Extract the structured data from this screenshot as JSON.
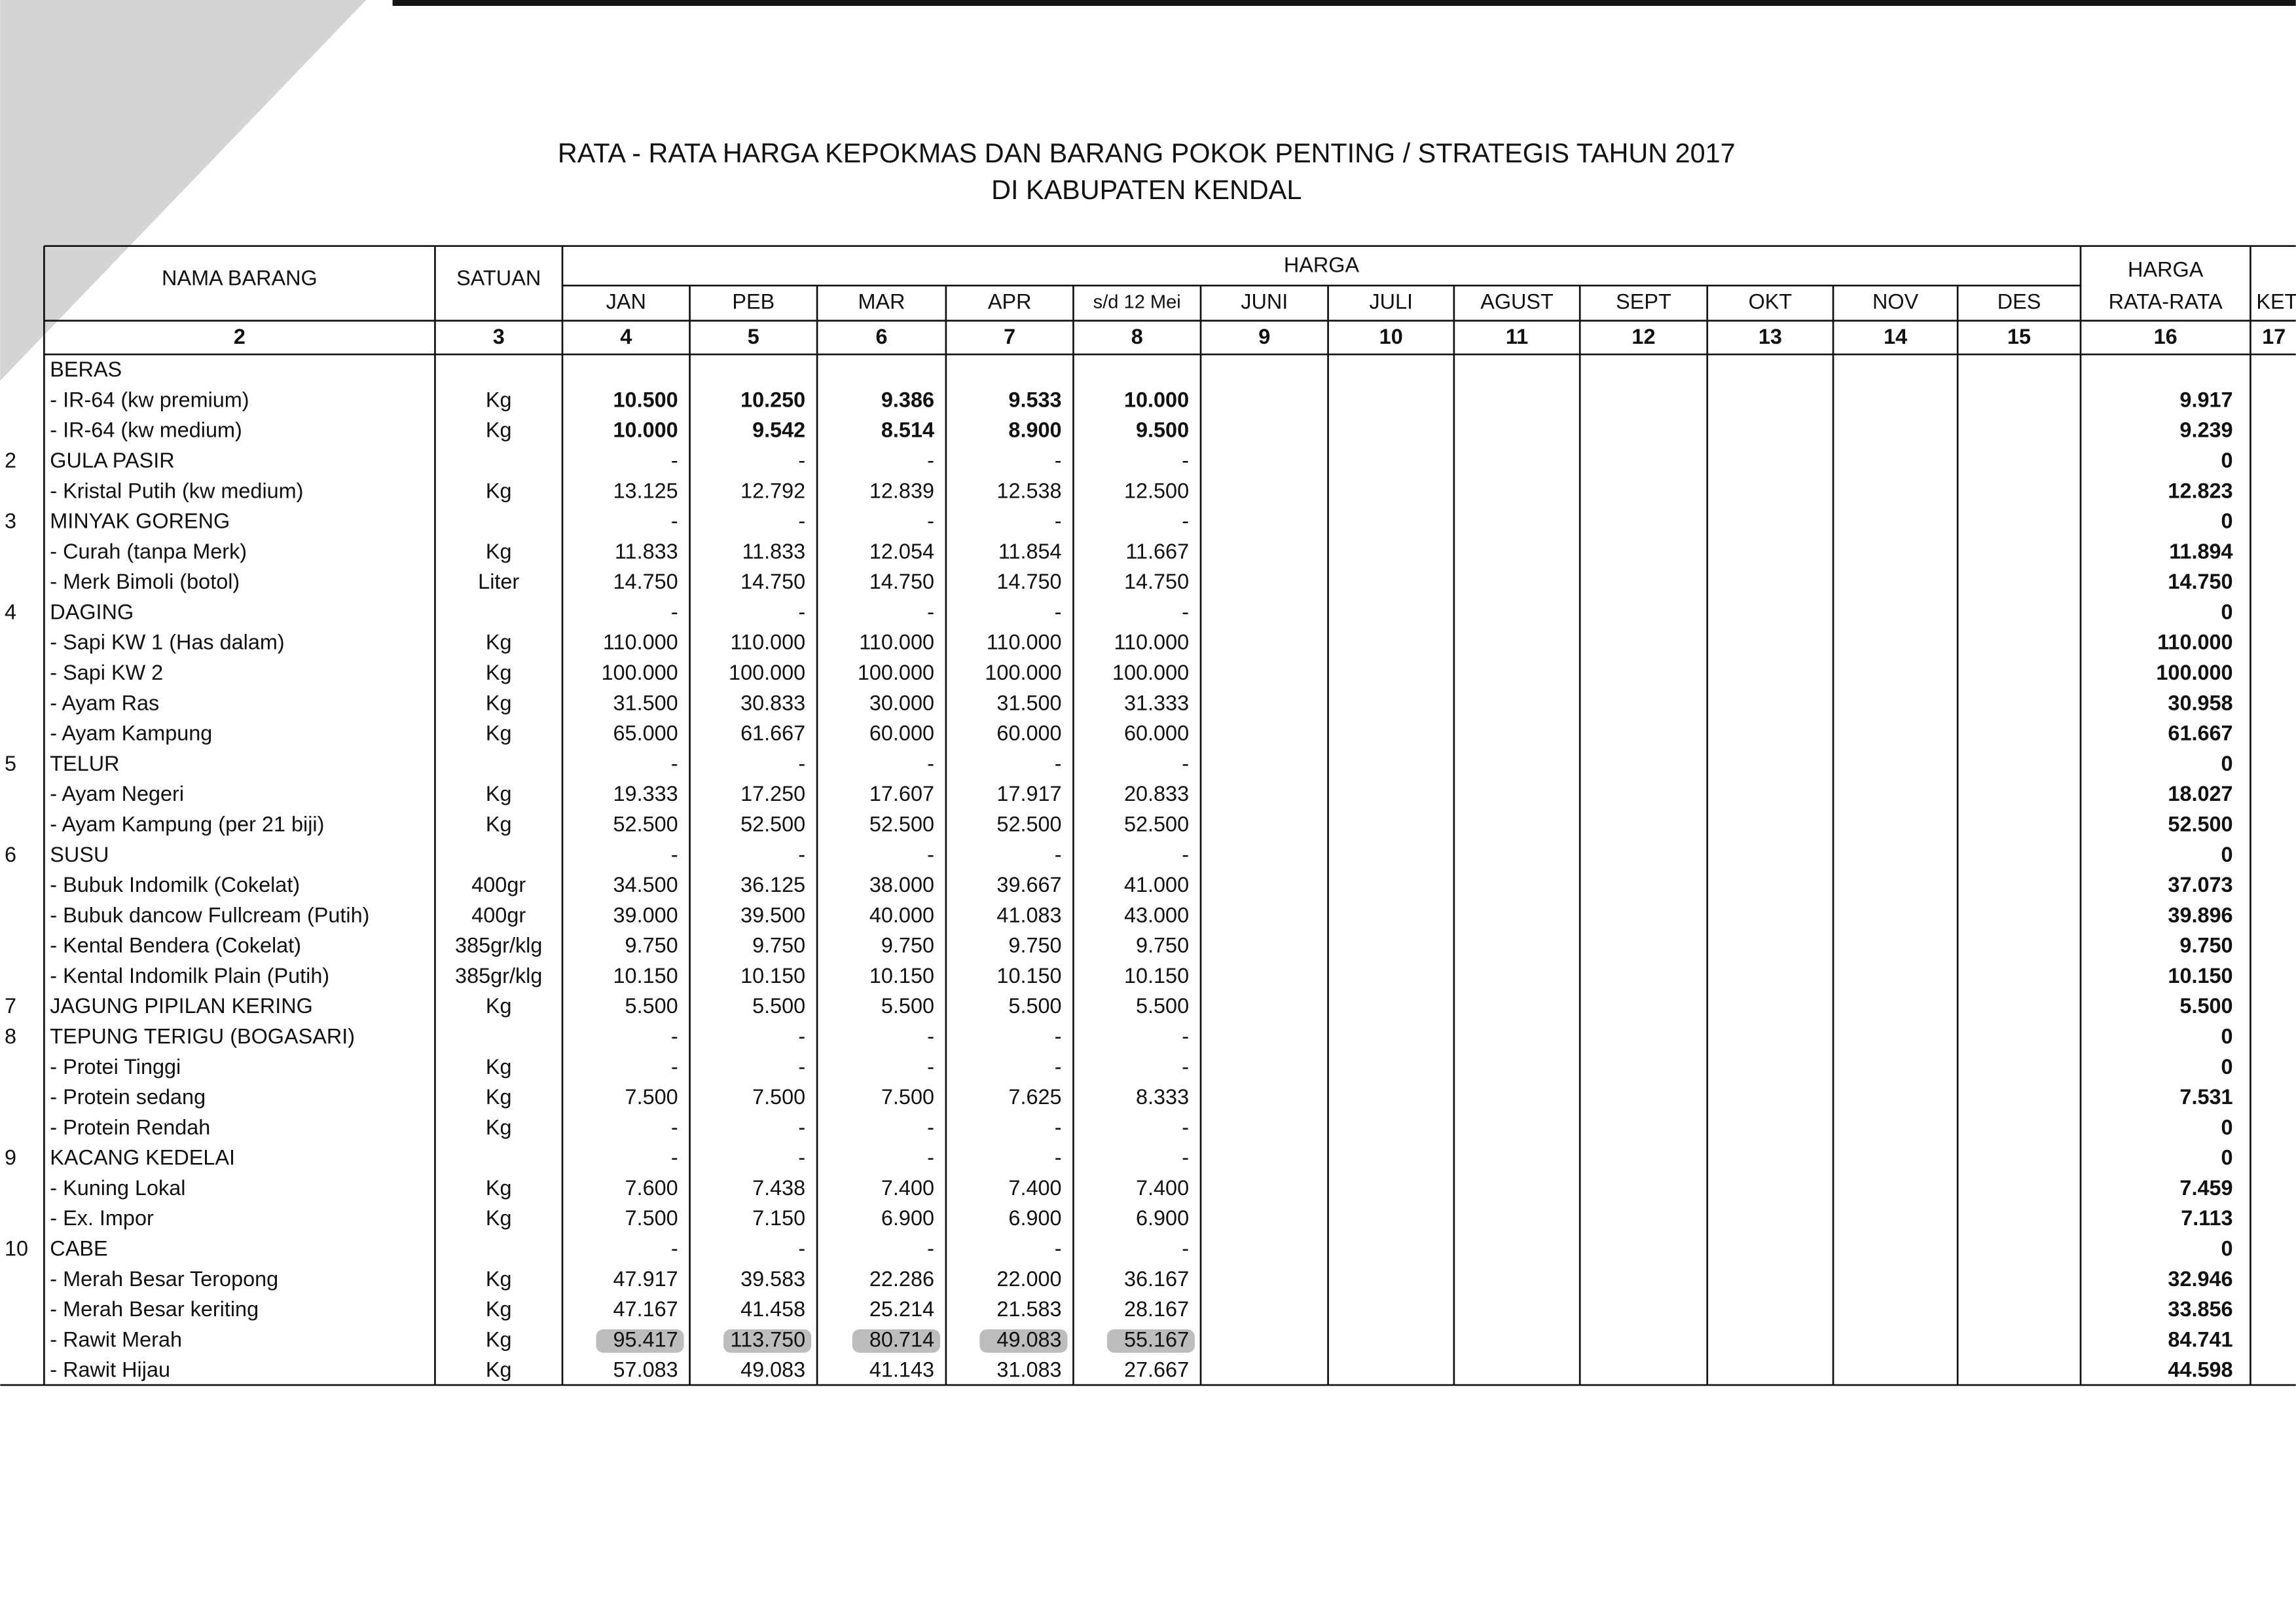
{
  "header": {
    "title": [
      "RATA - RATA HARGA KEPOKMAS DAN BARANG POKOK PENTING / STRATEGIS TAHUN 2017",
      "DI KABUPATEN KENDAL"
    ]
  },
  "table": {
    "columns": {
      "name": "NAMA BARANG",
      "unit": "SATUAN",
      "price": "HARGA",
      "months": [
        "JAN",
        "PEB",
        "MAR",
        "APR",
        "s/d 12 Mei",
        "JUNI",
        "JULI",
        "AGUST",
        "SEPT",
        "OKT",
        "NOV",
        "DES"
      ],
      "average": [
        "HARGA",
        "RATA-RATA"
      ],
      "note": "KET",
      "numbers": [
        "2",
        "3",
        "4",
        "5",
        "6",
        "7",
        "8",
        "9",
        "10",
        "11",
        "12",
        "13",
        "14",
        "15",
        "16",
        "17"
      ]
    },
    "rows": [
      {
        "name": "BERAS"
      },
      {
        "name": "- IR-64 (kw premium)",
        "unit": "Kg",
        "prices": [
          "10.500",
          "10.250",
          "9.386",
          "9.533",
          "10.000"
        ],
        "average": "9.917"
      },
      {
        "name": "- IR-64 (kw medium)",
        "unit": "Kg",
        "prices": [
          "10.000",
          "9.542",
          "8.514",
          "8.900",
          "9.500"
        ],
        "average": "9.239"
      },
      {
        "no": "2",
        "name": "GULA PASIR",
        "prices": [
          "-",
          "-",
          "-",
          "-",
          "-"
        ],
        "average": "0"
      },
      {
        "name": "- Kristal Putih (kw medium)",
        "unit": "Kg",
        "prices": [
          "13.125",
          "12.792",
          "12.839",
          "12.538",
          "12.500"
        ],
        "average": "12.823"
      },
      {
        "no": "3",
        "name": "MINYAK GORENG",
        "prices": [
          "-",
          "-",
          "-",
          "-",
          "-"
        ],
        "average": "0"
      },
      {
        "name": "- Curah (tanpa Merk)",
        "unit": "Kg",
        "prices": [
          "11.833",
          "11.833",
          "12.054",
          "11.854",
          "11.667"
        ],
        "average": "11.894"
      },
      {
        "name": "- Merk Bimoli (botol)",
        "unit": "Liter",
        "prices": [
          "14.750",
          "14.750",
          "14.750",
          "14.750",
          "14.750"
        ],
        "average": "14.750"
      },
      {
        "no": "4",
        "name": "DAGING",
        "prices": [
          "-",
          "-",
          "-",
          "-",
          "-"
        ],
        "average": "0"
      },
      {
        "name": "- Sapi KW 1 (Has dalam)",
        "unit": "Kg",
        "prices": [
          "110.000",
          "110.000",
          "110.000",
          "110.000",
          "110.000"
        ],
        "average": "110.000"
      },
      {
        "name": "- Sapi KW 2",
        "unit": "Kg",
        "prices": [
          "100.000",
          "100.000",
          "100.000",
          "100.000",
          "100.000"
        ],
        "average": "100.000"
      },
      {
        "name": "- Ayam Ras",
        "unit": "Kg",
        "prices": [
          "31.500",
          "30.833",
          "30.000",
          "31.500",
          "31.333"
        ],
        "average": "30.958"
      },
      {
        "name": "- Ayam Kampung",
        "unit": "Kg",
        "prices": [
          "65.000",
          "61.667",
          "60.000",
          "60.000",
          "60.000"
        ],
        "average": "61.667"
      },
      {
        "no": "5",
        "name": "TELUR",
        "prices": [
          "-",
          "-",
          "-",
          "-",
          "-"
        ],
        "average": "0"
      },
      {
        "name": "- Ayam Negeri",
        "unit": "Kg",
        "prices": [
          "19.333",
          "17.250",
          "17.607",
          "17.917",
          "20.833"
        ],
        "average": "18.027"
      },
      {
        "name": "- Ayam Kampung (per 21 biji)",
        "unit": "Kg",
        "prices": [
          "52.500",
          "52.500",
          "52.500",
          "52.500",
          "52.500"
        ],
        "average": "52.500"
      },
      {
        "no": "6",
        "name": "SUSU",
        "prices": [
          "-",
          "-",
          "-",
          "-",
          "-"
        ],
        "average": "0"
      },
      {
        "name": "- Bubuk Indomilk (Cokelat)",
        "unit": "400gr",
        "prices": [
          "34.500",
          "36.125",
          "38.000",
          "39.667",
          "41.000"
        ],
        "average": "37.073"
      },
      {
        "name": "- Bubuk dancow Fullcream (Putih)",
        "unit": "400gr",
        "prices": [
          "39.000",
          "39.500",
          "40.000",
          "41.083",
          "43.000"
        ],
        "average": "39.896"
      },
      {
        "name": "- Kental Bendera (Cokelat)",
        "unit": "385gr/klg",
        "prices": [
          "9.750",
          "9.750",
          "9.750",
          "9.750",
          "9.750"
        ],
        "average": "9.750"
      },
      {
        "name": "- Kental Indomilk Plain (Putih)",
        "unit": "385gr/klg",
        "prices": [
          "10.150",
          "10.150",
          "10.150",
          "10.150",
          "10.150"
        ],
        "average": "10.150"
      },
      {
        "no": "7",
        "name": "JAGUNG PIPILAN KERING",
        "unit": "Kg",
        "prices": [
          "5.500",
          "5.500",
          "5.500",
          "5.500",
          "5.500"
        ],
        "average": "5.500"
      },
      {
        "no": "8",
        "name": "TEPUNG TERIGU (BOGASARI)",
        "prices": [
          "-",
          "-",
          "-",
          "-",
          "-"
        ],
        "average": "0"
      },
      {
        "name": "- Protei Tinggi",
        "unit": "Kg",
        "prices": [
          "-",
          "-",
          "-",
          "-",
          "-"
        ],
        "average": "0"
      },
      {
        "name": "- Protein sedang",
        "unit": "Kg",
        "prices": [
          "7.500",
          "7.500",
          "7.500",
          "7.625",
          "8.333"
        ],
        "average": "7.531"
      },
      {
        "name": "- Protein Rendah",
        "unit": "Kg",
        "prices": [
          "-",
          "-",
          "-",
          "-",
          "-"
        ],
        "average": "0"
      },
      {
        "no": "9",
        "name": "KACANG KEDELAI",
        "prices": [
          "-",
          "-",
          "-",
          "-",
          "-"
        ],
        "average": "0"
      },
      {
        "name": "- Kuning Lokal",
        "unit": "Kg",
        "prices": [
          "7.600",
          "7.438",
          "7.400",
          "7.400",
          "7.400"
        ],
        "average": "7.459"
      },
      {
        "name": "- Ex. Impor",
        "unit": "Kg",
        "prices": [
          "7.500",
          "7.150",
          "6.900",
          "6.900",
          "6.900"
        ],
        "average": "7.113"
      },
      {
        "no": "10",
        "name": "CABE",
        "prices": [
          "-",
          "-",
          "-",
          "-",
          "-"
        ],
        "average": "0"
      },
      {
        "name": "- Merah Besar Teropong",
        "unit": "Kg",
        "prices": [
          "47.917",
          "39.583",
          "22.286",
          "22.000",
          "36.167"
        ],
        "average": "32.946"
      },
      {
        "name": "- Merah Besar keriting",
        "unit": "Kg",
        "prices": [
          "47.167",
          "41.458",
          "25.214",
          "21.583",
          "28.167"
        ],
        "average": "33.856"
      },
      {
        "name": "- Rawit Merah",
        "unit": "Kg",
        "prices": [
          "95.417",
          "113.750",
          "80.714",
          "49.083",
          "55.167"
        ],
        "average": "84.741"
      },
      {
        "name": "- Rawit Hijau",
        "unit": "Kg",
        "prices": [
          "57.083",
          "49.083",
          "41.143",
          "31.083",
          "27.667"
        ],
        "average": "44.598"
      }
    ]
  }
}
